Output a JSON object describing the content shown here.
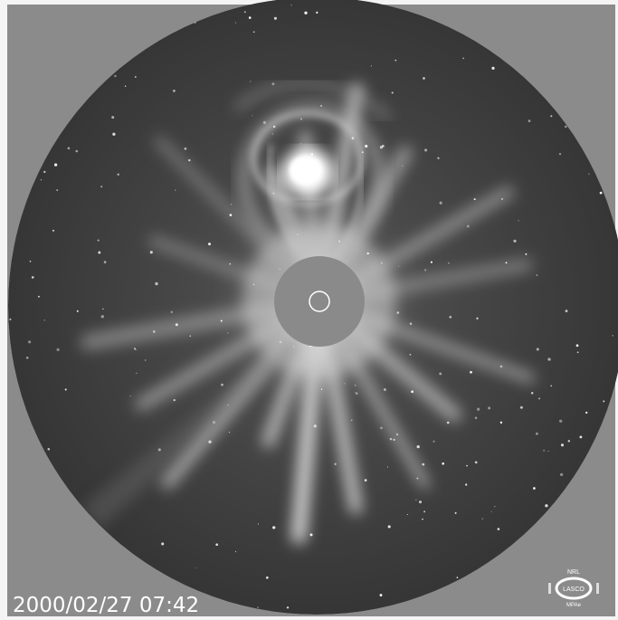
{
  "image": {
    "timestamp": "2000/02/27 07:42",
    "logo": {
      "top": "NRL",
      "center": "LASCO",
      "bottom": "MPAe"
    }
  }
}
